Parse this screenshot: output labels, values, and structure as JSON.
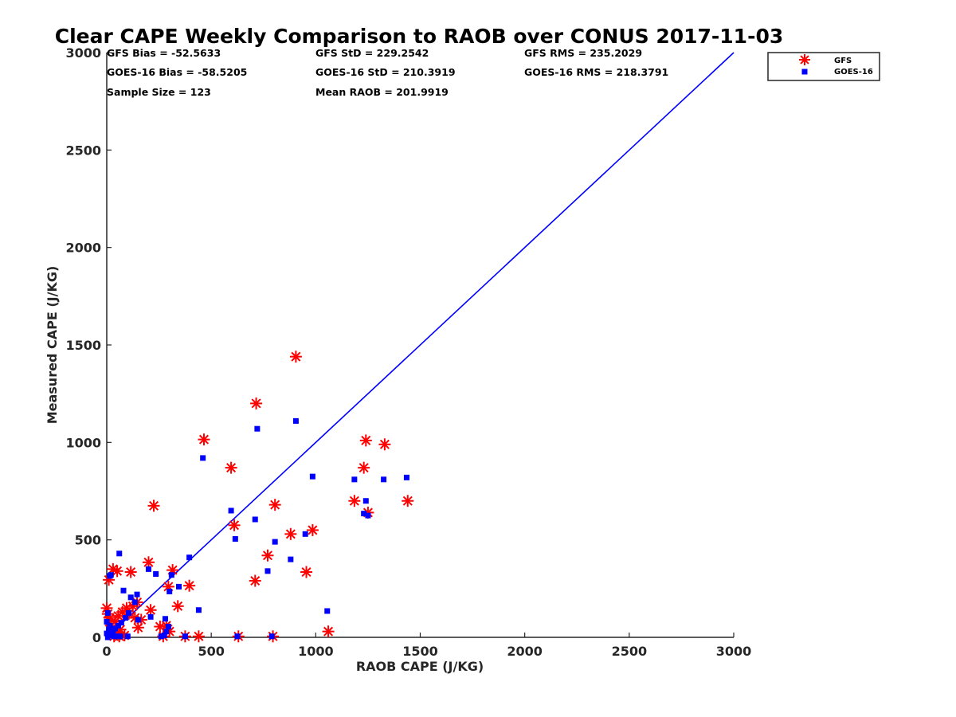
{
  "chart_data": {
    "type": "scatter",
    "title": "Clear CAPE Weekly Comparison to RAOB over CONUS 2017-11-03",
    "xlabel": "RAOB CAPE (J/KG)",
    "ylabel": "Measured CAPE (J/KG)",
    "xlim": [
      0,
      3000
    ],
    "ylim": [
      0,
      3000
    ],
    "xticks": [
      0,
      500,
      1000,
      1500,
      2000,
      2500,
      3000
    ],
    "yticks": [
      0,
      500,
      1000,
      1500,
      2000,
      2500,
      3000
    ],
    "grid": false,
    "legend_position": "top-right",
    "stats": [
      "GFS Bias = -52.5633",
      "GFS StD = 229.2542",
      "GFS RMS = 235.2029",
      "GOES-16 Bias = -58.5205",
      "GOES-16 StD = 210.3919",
      "GOES-16 RMS = 218.3791",
      "Sample Size = 123",
      "Mean RAOB = 201.9919"
    ],
    "reference_line": {
      "x": [
        0,
        3000
      ],
      "y": [
        0,
        3000
      ],
      "color": "#0000ff"
    },
    "series": [
      {
        "name": "GFS",
        "marker": "asterisk",
        "color": "#ff0000",
        "points": [
          [
            0,
            150
          ],
          [
            5,
            120
          ],
          [
            10,
            295
          ],
          [
            15,
            100
          ],
          [
            20,
            60
          ],
          [
            25,
            20
          ],
          [
            30,
            350
          ],
          [
            35,
            5
          ],
          [
            40,
            80
          ],
          [
            45,
            30
          ],
          [
            50,
            340
          ],
          [
            55,
            110
          ],
          [
            60,
            5
          ],
          [
            65,
            40
          ],
          [
            75,
            130
          ],
          [
            85,
            10
          ],
          [
            95,
            150
          ],
          [
            105,
            120
          ],
          [
            115,
            335
          ],
          [
            125,
            160
          ],
          [
            135,
            100
          ],
          [
            145,
            180
          ],
          [
            150,
            50
          ],
          [
            165,
            90
          ],
          [
            200,
            385
          ],
          [
            210,
            140
          ],
          [
            225,
            675
          ],
          [
            255,
            55
          ],
          [
            270,
            5
          ],
          [
            285,
            60
          ],
          [
            295,
            260
          ],
          [
            300,
            30
          ],
          [
            315,
            345
          ],
          [
            340,
            160
          ],
          [
            375,
            5
          ],
          [
            395,
            265
          ],
          [
            440,
            5
          ],
          [
            465,
            1015
          ],
          [
            595,
            870
          ],
          [
            610,
            575
          ],
          [
            630,
            5
          ],
          [
            710,
            290
          ],
          [
            715,
            1200
          ],
          [
            770,
            420
          ],
          [
            795,
            5
          ],
          [
            805,
            680
          ],
          [
            880,
            530
          ],
          [
            905,
            1440
          ],
          [
            955,
            335
          ],
          [
            985,
            550
          ],
          [
            1060,
            30
          ],
          [
            1185,
            700
          ],
          [
            1230,
            870
          ],
          [
            1240,
            1010
          ],
          [
            1250,
            640
          ],
          [
            1330,
            990
          ],
          [
            1440,
            700
          ]
        ]
      },
      {
        "name": "GOES-16",
        "marker": "square",
        "color": "#0000ff",
        "points": [
          [
            0,
            80
          ],
          [
            0,
            20
          ],
          [
            5,
            125
          ],
          [
            5,
            0
          ],
          [
            10,
            40
          ],
          [
            15,
            60
          ],
          [
            15,
            315
          ],
          [
            20,
            320
          ],
          [
            25,
            10
          ],
          [
            30,
            30
          ],
          [
            35,
            5
          ],
          [
            40,
            45
          ],
          [
            50,
            5
          ],
          [
            55,
            60
          ],
          [
            60,
            430
          ],
          [
            65,
            5
          ],
          [
            70,
            75
          ],
          [
            80,
            240
          ],
          [
            90,
            100
          ],
          [
            100,
            5
          ],
          [
            105,
            125
          ],
          [
            115,
            205
          ],
          [
            135,
            180
          ],
          [
            145,
            220
          ],
          [
            150,
            90
          ],
          [
            200,
            350
          ],
          [
            210,
            105
          ],
          [
            235,
            325
          ],
          [
            260,
            5
          ],
          [
            275,
            10
          ],
          [
            280,
            95
          ],
          [
            285,
            30
          ],
          [
            295,
            55
          ],
          [
            300,
            235
          ],
          [
            310,
            320
          ],
          [
            345,
            260
          ],
          [
            375,
            5
          ],
          [
            395,
            410
          ],
          [
            440,
            140
          ],
          [
            460,
            920
          ],
          [
            595,
            650
          ],
          [
            615,
            505
          ],
          [
            625,
            5
          ],
          [
            710,
            605
          ],
          [
            720,
            1070
          ],
          [
            770,
            340
          ],
          [
            790,
            5
          ],
          [
            805,
            490
          ],
          [
            880,
            400
          ],
          [
            905,
            1110
          ],
          [
            950,
            530
          ],
          [
            985,
            825
          ],
          [
            1055,
            135
          ],
          [
            1185,
            810
          ],
          [
            1230,
            635
          ],
          [
            1240,
            700
          ],
          [
            1250,
            625
          ],
          [
            1325,
            810
          ],
          [
            1435,
            820
          ]
        ]
      }
    ]
  }
}
